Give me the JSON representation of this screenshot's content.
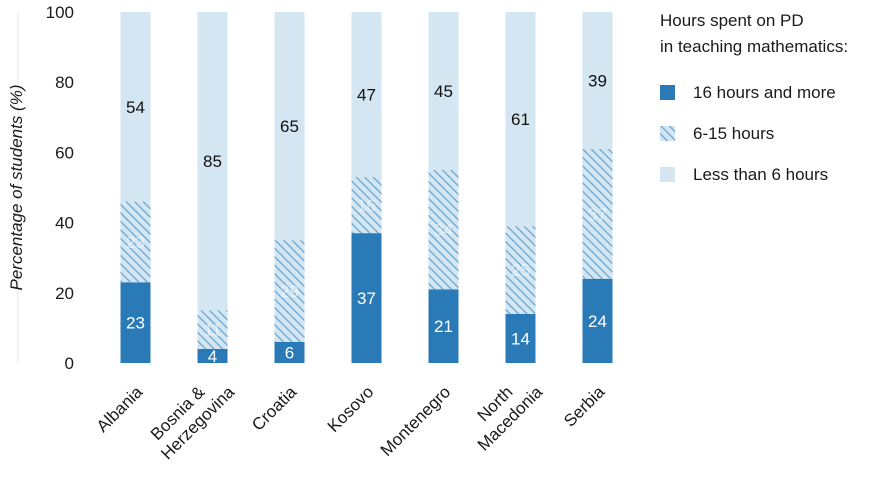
{
  "chart_data": {
    "type": "bar",
    "stacked": true,
    "ylabel": "Percentage of students (%)",
    "ylim": [
      0,
      100
    ],
    "yticks": [
      "0",
      "20",
      "40",
      "60",
      "80",
      "100"
    ],
    "grid": false,
    "legend_position": "right",
    "legend_title": "Hours spent on PD\nin teaching mathematics:",
    "categories": [
      "Albania",
      "Bosnia &\nHerzegovina",
      "Croatia",
      "Kosovo",
      "Montenegro",
      "North\nMacedonia",
      "Serbia"
    ],
    "series": [
      {
        "name": "16 hours and more",
        "values": [
          23,
          4,
          6,
          37,
          21,
          14,
          24
        ],
        "color": "#2a7ab8",
        "pattern": "solid"
      },
      {
        "name": "6-15 hours",
        "values": [
          23,
          11,
          29,
          16,
          34,
          25,
          37
        ],
        "color": "#7fb3d8",
        "pattern": "hatched"
      },
      {
        "name": "Less than 6 hours",
        "values": [
          54,
          85,
          65,
          47,
          45,
          61,
          39
        ],
        "color": "#d3e6f1",
        "pattern": "solid"
      }
    ]
  }
}
